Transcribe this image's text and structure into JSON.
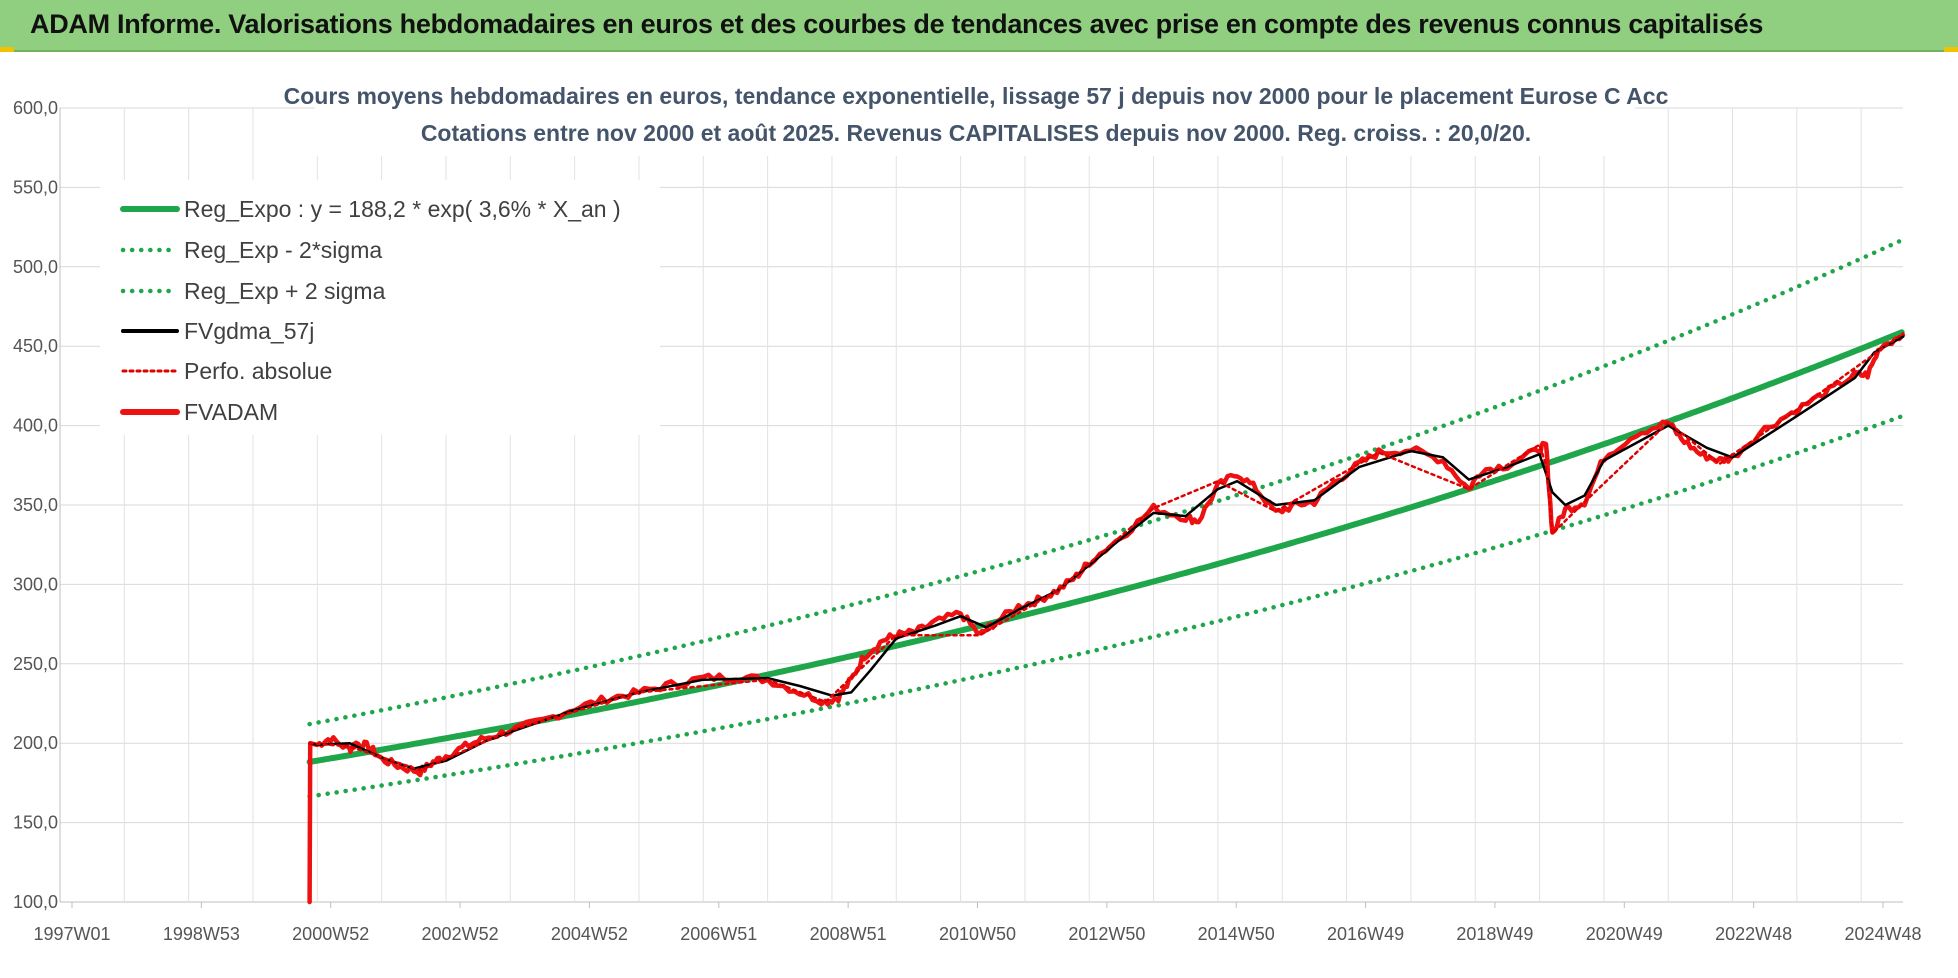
{
  "banner": {
    "title": "ADAM Informe. Valorisations hebdomadaires en euros et des courbes de tendances avec prise en compte des revenus connus capitalisés"
  },
  "colors": {
    "banner_bg": "#8fcf7f",
    "trend": "#1fa64a",
    "trend_band": "#1fa64a",
    "smoothed": "#000000",
    "perf_absolue": "#e00000",
    "fvadam": "#ee1111"
  },
  "chart_data": {
    "type": "line",
    "title": [
      "Cours moyens hebdomadaires en euros, tendance exponentielle, lissage 57 j depuis nov 2000 pour le placement Eurose C Acc",
      "Cotations entre nov 2000 et août 2025.  Revenus CAPITALISES depuis nov 2000. Reg. croiss. : 20,0/20."
    ],
    "xlabel": "",
    "ylabel": "",
    "x_ticks": [
      "1997W01",
      "1998W53",
      "2000W52",
      "2002W52",
      "2004W52",
      "2006W51",
      "2008W51",
      "2010W50",
      "2012W50",
      "2014W50",
      "2016W49",
      "2018W49",
      "2020W49",
      "2022W48",
      "2024W48"
    ],
    "x_range_years": [
      1997.0,
      2025.65
    ],
    "y_ticks": [
      "100,0",
      "150,0",
      "200,0",
      "250,0",
      "300,0",
      "350,0",
      "400,0",
      "450,0",
      "500,0",
      "550,0",
      "600,0"
    ],
    "ylim": [
      100,
      600
    ],
    "grid": true,
    "legend_position": "top-left",
    "legend": [
      {
        "label": "Reg_Expo : y = 188,2 * exp( 3,6% *  X_an )",
        "style": "solid-thick",
        "color": "#1fa64a"
      },
      {
        "label": "Reg_Exp - 2*sigma",
        "style": "dotted",
        "color": "#1fa64a"
      },
      {
        "label": "Reg_Exp + 2 sigma",
        "style": "dotted",
        "color": "#1fa64a"
      },
      {
        "label": "FVgdma_57j",
        "style": "solid",
        "color": "#000000"
      },
      {
        "label": "Perfo. absolue",
        "style": "dotted",
        "color": "#e00000"
      },
      {
        "label": "FVADAM",
        "style": "solid-thick",
        "color": "#ee1111"
      }
    ],
    "series": [
      {
        "name": "Reg_Expo : y = 188,2 * exp( 3,6% *  X_an )",
        "kind": "expo",
        "a": 188.2,
        "rate": 0.036,
        "x_start": 2000.88,
        "x_end": 2025.65
      },
      {
        "name": "Reg_Exp - 2*sigma",
        "kind": "expo",
        "a": 166.5,
        "rate": 0.036,
        "x_start": 2000.88,
        "x_end": 2025.65
      },
      {
        "name": "Reg_Exp + 2 sigma",
        "kind": "expo",
        "a": 212.0,
        "rate": 0.036,
        "x_start": 2000.88,
        "x_end": 2025.65
      },
      {
        "name": "FVADAM",
        "kind": "points",
        "x": [
          2000.88,
          2000.89,
          2001.0,
          2001.2,
          2001.5,
          2001.6,
          2001.8,
          2002.0,
          2002.3,
          2002.6,
          2002.8,
          2003.0,
          2003.3,
          2003.6,
          2004.0,
          2004.5,
          2005.0,
          2005.5,
          2006.0,
          2006.5,
          2007.0,
          2007.5,
          2008.0,
          2008.5,
          2008.9,
          2009.1,
          2009.3,
          2009.5,
          2009.8,
          2010.0,
          2010.3,
          2010.6,
          2011.0,
          2011.3,
          2011.5,
          2011.9,
          2012.2,
          2012.5,
          2012.8,
          2013.0,
          2013.5,
          2014.0,
          2014.5,
          2014.7,
          2015.0,
          2015.3,
          2015.6,
          2015.9,
          2016.2,
          2016.5,
          2016.8,
          2017.2,
          2017.5,
          2018.0,
          2018.5,
          2018.9,
          2019.1,
          2019.5,
          2020.0,
          2020.1,
          2020.2,
          2020.4,
          2020.7,
          2021.0,
          2021.5,
          2022.0,
          2022.2,
          2022.5,
          2022.8,
          2023.0,
          2023.5,
          2024.0,
          2024.5,
          2024.9,
          2025.1,
          2025.3,
          2025.65
        ],
        "y": [
          100,
          200,
          199,
          203,
          196,
          200,
          198,
          190,
          185,
          182,
          188,
          192,
          198,
          203,
          208,
          214,
          222,
          228,
          232,
          237,
          241,
          242,
          240,
          232,
          226,
          229,
          240,
          255,
          265,
          268,
          270,
          276,
          282,
          268,
          275,
          286,
          290,
          296,
          305,
          314,
          330,
          348,
          342,
          340,
          362,
          370,
          360,
          345,
          350,
          352,
          364,
          376,
          383,
          385,
          378,
          360,
          372,
          375,
          385,
          388,
          332,
          347,
          352,
          380,
          395,
          402,
          392,
          382,
          378,
          380,
          398,
          410,
          422,
          432,
          432,
          450,
          457
        ]
      },
      {
        "name": "FVgdma_57j",
        "kind": "points",
        "x": [
          2000.88,
          2001.0,
          2001.5,
          2002.0,
          2002.5,
          2003.0,
          2003.6,
          2004.0,
          2005.0,
          2006.0,
          2007.0,
          2008.0,
          2008.5,
          2009.0,
          2009.3,
          2009.6,
          2010.0,
          2010.6,
          2011.0,
          2011.4,
          2011.9,
          2012.5,
          2013.0,
          2013.5,
          2014.0,
          2014.5,
          2015.0,
          2015.3,
          2015.9,
          2016.5,
          2017.2,
          2018.0,
          2018.5,
          2018.9,
          2019.5,
          2020.0,
          2020.2,
          2020.4,
          2020.7,
          2021.0,
          2022.0,
          2022.6,
          2023.0,
          2024.0,
          2024.9,
          2025.2,
          2025.65
        ],
        "y": [
          200,
          199,
          200,
          191,
          184,
          189,
          201,
          207,
          221,
          232,
          240,
          241,
          236,
          230,
          232,
          246,
          266,
          274,
          280,
          273,
          284,
          296,
          312,
          329,
          345,
          343,
          360,
          365,
          350,
          353,
          374,
          384,
          380,
          366,
          374,
          382,
          358,
          350,
          356,
          378,
          400,
          386,
          380,
          406,
          430,
          446,
          456
        ]
      },
      {
        "name": "Perfo. absolue",
        "kind": "points",
        "x": [
          2000.88,
          2001.5,
          2002.6,
          2004.0,
          2006.0,
          2008.0,
          2008.9,
          2010.0,
          2011.3,
          2012.5,
          2014.0,
          2015.0,
          2015.9,
          2017.5,
          2018.9,
          2020.0,
          2020.1,
          2020.2,
          2020.7,
          2022.0,
          2022.8,
          2024.0,
          2025.65
        ],
        "y": [
          200,
          198,
          183,
          208,
          232,
          240,
          226,
          268,
          268,
          296,
          348,
          365,
          346,
          383,
          360,
          388,
          375,
          332,
          352,
          402,
          376,
          410,
          458
        ]
      }
    ]
  }
}
